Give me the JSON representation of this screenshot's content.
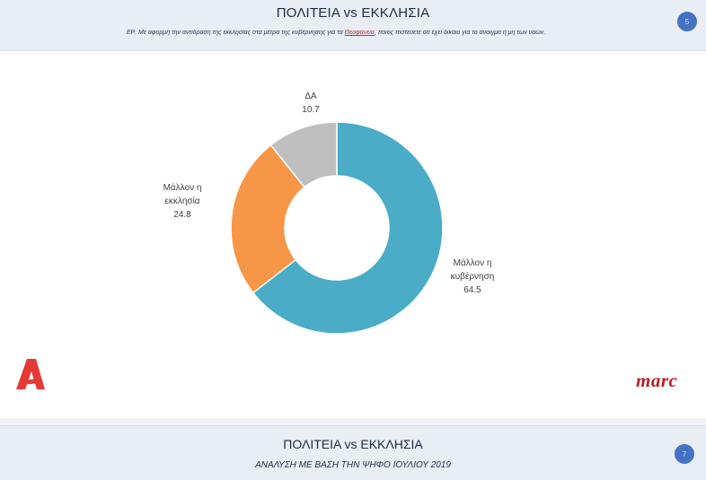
{
  "slide": {
    "title": "ΠΟΛΙΤΕΙΑ vs ΕΚΚΛΗΣΙΑ",
    "question_pre": "ΕΡ: Με αφορμή την αντίδραση της εκκλησίας στα μέτρα της κυβέρνησης για τα ",
    "question_highlight": "Θεοφάνεια",
    "question_post": ", ποιος πιστεύετε ότι έχει δίκαιο για το άνοιγμα ή μη των ναών.",
    "page_number": "5"
  },
  "chart_data": {
    "type": "pie",
    "donut": true,
    "slices": [
      {
        "label": "Μάλλον η κυβέρνηση",
        "label_lines": [
          "Μάλλον η",
          "κυβέρνηση"
        ],
        "value": 64.5,
        "value_text": "64.5",
        "color": "#4aacc6"
      },
      {
        "label": "Μάλλον η εκκλησία",
        "label_lines": [
          "Μάλλον η",
          "εκκλησία"
        ],
        "value": 24.8,
        "value_text": "24.8",
        "color": "#f79646"
      },
      {
        "label": "ΔΑ",
        "label_lines": [
          "ΔΑ"
        ],
        "value": 10.7,
        "value_text": "10.7",
        "color": "#bfbfbf"
      }
    ],
    "start_angle_deg": 0,
    "direction": "clockwise",
    "legend": "none",
    "labels_outside": true
  },
  "logos": {
    "left_icon": "alpha-tv-logo",
    "right_text": "marc"
  },
  "next_slide": {
    "title": "ΠΟΛΙΤΕΙΑ vs ΕΚΚΛΗΣΙΑ",
    "subtitle": "ΑΝΑΛΥΣΗ ΜΕ ΒΑΣΗ ΤΗΝ ΨΗΦΟ ΙΟΥΛΙΟΥ 2019",
    "page_number": "7"
  },
  "colors": {
    "header_bg": "#e9eef5",
    "badge": "#4472c4",
    "brand_red": "#e53935",
    "marc_red": "#b81f24"
  }
}
